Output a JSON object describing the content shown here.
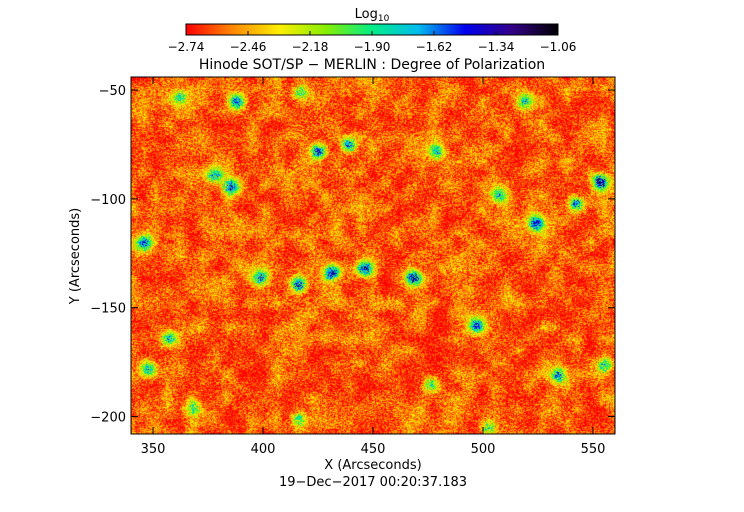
{
  "chart_data": {
    "type": "heatmap",
    "title": "Hinode SOT/SP − MERLIN : Degree of Polarization",
    "xlabel": "X (Arcseconds)",
    "ylabel": "Y (Arcseconds)",
    "timestamp": "19−Dec−2017 00:20:37.183",
    "xlim": [
      340,
      560
    ],
    "ylim": [
      -208,
      -44
    ],
    "x_ticks": [
      {
        "value": 350,
        "label": "350"
      },
      {
        "value": 400,
        "label": "400"
      },
      {
        "value": 450,
        "label": "450"
      },
      {
        "value": 500,
        "label": "500"
      },
      {
        "value": 550,
        "label": "550"
      }
    ],
    "y_ticks": [
      {
        "value": -50,
        "label": "−50"
      },
      {
        "value": -100,
        "label": "−100"
      },
      {
        "value": -150,
        "label": "−150"
      },
      {
        "value": -200,
        "label": "−200"
      }
    ],
    "colorbar": {
      "label_main": "Log",
      "label_sub": "10",
      "range": [
        -2.74,
        -1.06
      ],
      "ticks": [
        {
          "value": -2.74,
          "label": "−2.74"
        },
        {
          "value": -2.46,
          "label": "−2.46"
        },
        {
          "value": -2.18,
          "label": "−2.18"
        },
        {
          "value": -1.9,
          "label": "−1.90"
        },
        {
          "value": -1.62,
          "label": "−1.62"
        },
        {
          "value": -1.34,
          "label": "−1.34"
        },
        {
          "value": -1.06,
          "label": "−1.06"
        }
      ],
      "colors": [
        "#ff0000",
        "#ff8800",
        "#ffee00",
        "#88ee00",
        "#00ee88",
        "#00bbee",
        "#0000ee",
        "#330088",
        "#000000"
      ]
    },
    "background_level": -2.6,
    "features": [
      {
        "x": 468,
        "y": -136,
        "peak": -1.15
      },
      {
        "x": 431,
        "y": -134,
        "peak": -1.2
      },
      {
        "x": 416,
        "y": -139,
        "peak": -1.25
      },
      {
        "x": 446,
        "y": -132,
        "peak": -1.35
      },
      {
        "x": 399,
        "y": -136,
        "peak": -1.5
      },
      {
        "x": 385,
        "y": -94,
        "peak": -1.3
      },
      {
        "x": 378,
        "y": -89,
        "peak": -1.55
      },
      {
        "x": 425,
        "y": -78,
        "peak": -1.35
      },
      {
        "x": 439,
        "y": -75,
        "peak": -1.45
      },
      {
        "x": 553,
        "y": -92,
        "peak": -1.1
      },
      {
        "x": 542,
        "y": -102,
        "peak": -1.45
      },
      {
        "x": 524,
        "y": -111,
        "peak": -1.35
      },
      {
        "x": 346,
        "y": -120,
        "peak": -1.5
      },
      {
        "x": 388,
        "y": -55,
        "peak": -1.45
      },
      {
        "x": 362,
        "y": -53,
        "peak": -1.7
      },
      {
        "x": 417,
        "y": -51,
        "peak": -1.75
      },
      {
        "x": 497,
        "y": -158,
        "peak": -1.55
      },
      {
        "x": 348,
        "y": -178,
        "peak": -1.65
      },
      {
        "x": 357,
        "y": -164,
        "peak": -1.7
      },
      {
        "x": 534,
        "y": -181,
        "peak": -1.55
      },
      {
        "x": 555,
        "y": -176,
        "peak": -1.6
      },
      {
        "x": 416,
        "y": -201,
        "peak": -1.65
      },
      {
        "x": 479,
        "y": -78,
        "peak": -1.7
      },
      {
        "x": 519,
        "y": -55,
        "peak": -1.8
      },
      {
        "x": 507,
        "y": -98,
        "peak": -1.8
      },
      {
        "x": 476,
        "y": -185,
        "peak": -1.85
      },
      {
        "x": 368,
        "y": -196,
        "peak": -1.8
      },
      {
        "x": 502,
        "y": -205,
        "peak": -1.85
      }
    ]
  }
}
